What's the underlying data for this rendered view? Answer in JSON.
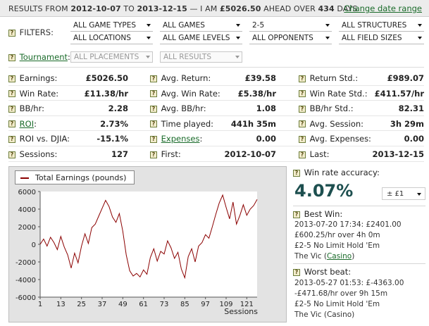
{
  "summary": {
    "prefix": "RESULTS FROM ",
    "date_from": "2012-10-07",
    "mid": " TO ",
    "date_to": "2013-12-15",
    "mid2": " — I AM ",
    "amount": "£5026.50",
    "mid3": " AHEAD OVER ",
    "days": "434",
    "suffix": " DAYS",
    "change_link": "Change date range"
  },
  "filters": {
    "label": "FILTERS:",
    "row1": [
      "ALL GAME TYPES",
      "ALL GAMES",
      "2-5",
      "ALL STRUCTURES"
    ],
    "row2": [
      "ALL LOCATIONS",
      "ALL GAME LEVELS",
      "ALL OPPONENTS",
      "ALL FIELD SIZES"
    ]
  },
  "tournament": {
    "label": "Tournament",
    "colon": ":",
    "placements": "ALL PLACEMENTS",
    "results": "ALL RESULTS"
  },
  "stats": [
    [
      {
        "label": "Earnings:",
        "value": "£5026.50"
      },
      {
        "label": "Avg. Return:",
        "value": "£39.58"
      },
      {
        "label": "Return Std.:",
        "value": "£989.07"
      }
    ],
    [
      {
        "label": "Win Rate:",
        "value": "£11.38/hr"
      },
      {
        "label": "Avg. Win Rate:",
        "value": "£5.38/hr"
      },
      {
        "label": "Win Rate Std.:",
        "value": "£411.57/hr"
      }
    ],
    [
      {
        "label": "BB/hr:",
        "value": "2.28"
      },
      {
        "label": "Avg. BB/hr:",
        "value": "1.08"
      },
      {
        "label": "BB/hr Std.:",
        "value": "82.31"
      }
    ],
    [
      {
        "label": "ROI",
        "suffix": ":",
        "value": "2.73%",
        "link": true
      },
      {
        "label": "Time played:",
        "value": "441h 35m"
      },
      {
        "label": "Avg. Session:",
        "value": "3h 29m"
      }
    ],
    [
      {
        "label": "ROI vs. DJIA:",
        "value": "-15.1%"
      },
      {
        "label": "Expenses",
        "suffix": ":",
        "value": "0.00",
        "link": true
      },
      {
        "label": "Avg. Expenses:",
        "value": "0.00"
      }
    ],
    [
      {
        "label": "Sessions:",
        "value": "127"
      },
      {
        "label": "First:",
        "value": "2012-10-07"
      },
      {
        "label": "Last:",
        "value": "2013-12-15"
      }
    ]
  ],
  "chart_data": {
    "type": "line",
    "title": "",
    "xlabel": "Sessions",
    "ylabel": "",
    "series": [
      {
        "name": "Total Earnings (pounds)",
        "color": "#8b0000"
      }
    ],
    "x_ticks": [
      "1",
      "13",
      "25",
      "37",
      "49",
      "61",
      "73",
      "85",
      "97",
      "109",
      "121"
    ],
    "y_ticks": [
      "6000",
      "4000",
      "2000",
      "0",
      "-2000",
      "-4000",
      "-6000"
    ],
    "xlim": [
      1,
      127
    ],
    "ylim": [
      -6000,
      6000
    ],
    "x": [
      1,
      3,
      5,
      7,
      9,
      11,
      13,
      15,
      17,
      19,
      21,
      23,
      25,
      27,
      29,
      31,
      33,
      35,
      37,
      39,
      41,
      43,
      45,
      47,
      49,
      51,
      53,
      55,
      57,
      59,
      61,
      63,
      65,
      67,
      69,
      71,
      73,
      75,
      77,
      79,
      81,
      83,
      85,
      87,
      89,
      91,
      93,
      95,
      97,
      99,
      101,
      103,
      105,
      107,
      109,
      111,
      113,
      115,
      117,
      119,
      121,
      123,
      125,
      127
    ],
    "y": [
      0,
      600,
      -200,
      800,
      200,
      -600,
      900,
      -300,
      -1200,
      -2700,
      -1000,
      -2100,
      -200,
      1200,
      100,
      1900,
      2300,
      3200,
      4100,
      5000,
      4300,
      3100,
      2500,
      3500,
      1500,
      -1200,
      -3000,
      -3600,
      -3300,
      -3700,
      -2900,
      -3400,
      -1500,
      -500,
      -1900,
      -800,
      -1100,
      400,
      -400,
      -1600,
      -900,
      -2800,
      -3800,
      -1400,
      -500,
      -2000,
      -200,
      200,
      1100,
      700,
      2000,
      3400,
      4700,
      5600,
      4200,
      2900,
      4800,
      2300,
      3300,
      4500,
      3300,
      4000,
      4400,
      5100
    ]
  },
  "win_rate": {
    "label": "Win rate accuracy:",
    "value": "4.07%",
    "select": "± £1"
  },
  "best_win": {
    "title": "Best Win:",
    "line1": "2013-07-20 17:34: £2401.00",
    "line2": "£600.25/hr over 4h 0m",
    "line3": "£2-5 No Limit Hold 'Em",
    "venue": "The Vic (",
    "venue_link": "Casino",
    "venue_end": ")"
  },
  "worst_beat": {
    "title": "Worst beat:",
    "line1": "2013-05-27 01:53: £-4363.00",
    "line2": "-£471.68/hr over 9h 15m",
    "line3": "£2-5 No Limit Hold 'Em",
    "venue": "The Vic (Casino)"
  }
}
